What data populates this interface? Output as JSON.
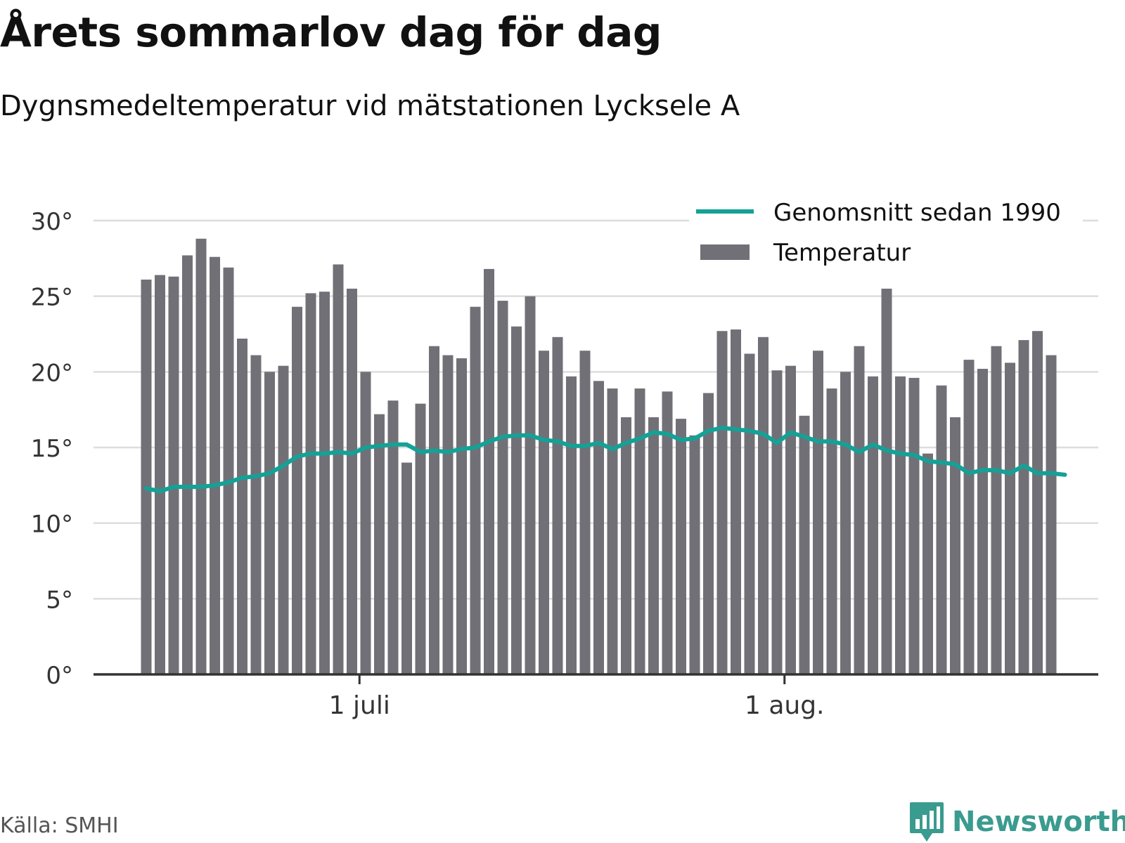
{
  "header": {
    "title": "Årets sommarlov dag för dag",
    "subtitle": "Dygnsmedeltemperatur vid mätstationen Lycksele A"
  },
  "footer": {
    "source": "Källa: SMHI",
    "brand": "Newsworthy",
    "brand_icon": "bar-chart-speech-bubble-icon"
  },
  "colors": {
    "bars": "#727077",
    "line": "#14a196",
    "grid": "#dddddd",
    "axis": "#333333",
    "brand": "#3a9b8f"
  },
  "chart_data": {
    "type": "bar",
    "xaxis_ticks": [
      {
        "label": "1 juli",
        "day_index": 16
      },
      {
        "label": "1 aug.",
        "day_index": 47
      }
    ],
    "yaxis_ticks": [
      "0°",
      "5°",
      "10°",
      "15°",
      "20°",
      "25°",
      "30°"
    ],
    "ylim": [
      0,
      30
    ],
    "grid": true,
    "legend_position": "top-right",
    "series": [
      {
        "name": "Temperatur",
        "kind": "bar",
        "values": [
          26.1,
          26.4,
          26.3,
          27.7,
          28.8,
          27.6,
          26.9,
          22.2,
          21.1,
          20.0,
          20.4,
          24.3,
          25.2,
          25.3,
          27.1,
          25.5,
          20.0,
          17.2,
          18.1,
          14.0,
          17.9,
          21.7,
          21.1,
          20.9,
          24.3,
          26.8,
          24.7,
          23.0,
          25.0,
          21.4,
          22.3,
          19.7,
          21.4,
          19.4,
          18.9,
          17.0,
          18.9,
          17.0,
          18.7,
          16.9,
          15.8,
          18.6,
          22.7,
          22.8,
          21.2,
          22.3,
          20.1,
          20.4,
          17.1,
          21.4,
          18.9,
          20.0,
          21.7,
          19.7,
          25.5,
          19.7,
          19.6,
          14.6,
          19.1,
          17.0,
          20.8,
          20.2,
          21.7,
          20.6,
          22.1,
          22.7,
          21.1
        ]
      },
      {
        "name": "Genomsnitt sedan 1990",
        "kind": "line",
        "values": [
          12.3,
          12.1,
          12.4,
          12.4,
          12.4,
          12.5,
          12.7,
          13.0,
          13.1,
          13.3,
          13.8,
          14.4,
          14.6,
          14.6,
          14.7,
          14.6,
          15.0,
          15.1,
          15.2,
          15.2,
          14.7,
          14.8,
          14.7,
          14.9,
          15.0,
          15.4,
          15.7,
          15.8,
          15.8,
          15.5,
          15.4,
          15.1,
          15.1,
          15.3,
          14.9,
          15.3,
          15.6,
          16.0,
          15.9,
          15.5,
          15.6,
          16.1,
          16.3,
          16.2,
          16.1,
          15.9,
          15.3,
          16.0,
          15.7,
          15.4,
          15.4,
          15.2,
          14.7,
          15.2,
          14.8,
          14.6,
          14.5,
          14.1,
          14.0,
          13.9,
          13.3,
          13.5,
          13.5,
          13.3,
          13.8,
          13.3,
          13.3,
          13.2
        ]
      }
    ]
  }
}
